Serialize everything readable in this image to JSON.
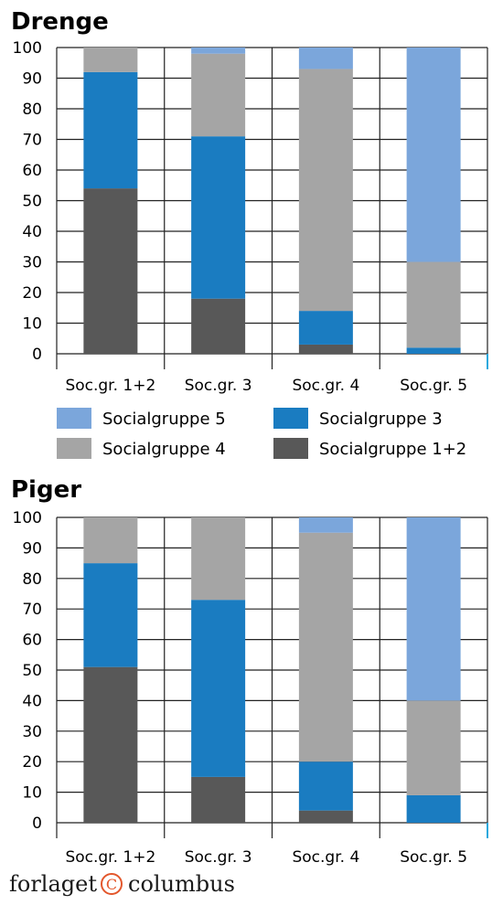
{
  "colors": {
    "Socialgruppe 1+2": "#585858",
    "Socialgruppe 3": "#1a7cc1",
    "Socialgruppe 4": "#a5a5a5",
    "Socialgruppe 5": "#7ba6db",
    "axis_accent": "#29a8dd"
  },
  "legend": {
    "items": [
      "Socialgruppe 5",
      "Socialgruppe 3",
      "Socialgruppe 4",
      "Socialgruppe 1+2"
    ]
  },
  "publisher": {
    "name_left": "forlaget",
    "mark": "C",
    "name_right": "columbus"
  },
  "chart_data": [
    {
      "type": "bar",
      "stacked": true,
      "title": "Drenge",
      "categories": [
        "Soc.gr. 1+2",
        "Soc.gr. 3",
        "Soc.gr. 4",
        "Soc.gr. 5"
      ],
      "ylim": [
        0,
        100
      ],
      "yticks": [
        0,
        10,
        20,
        30,
        40,
        50,
        60,
        70,
        80,
        90,
        100
      ],
      "grid": true,
      "series": [
        {
          "name": "Socialgruppe 1+2",
          "values": [
            54,
            18,
            3,
            0
          ]
        },
        {
          "name": "Socialgruppe 3",
          "values": [
            38,
            53,
            11,
            2
          ]
        },
        {
          "name": "Socialgruppe 4",
          "values": [
            8,
            27,
            79,
            28
          ]
        },
        {
          "name": "Socialgruppe 5",
          "values": [
            0,
            2,
            7,
            70
          ]
        }
      ]
    },
    {
      "type": "bar",
      "stacked": true,
      "title": "Piger",
      "categories": [
        "Soc.gr. 1+2",
        "Soc.gr. 3",
        "Soc.gr. 4",
        "Soc.gr. 5"
      ],
      "ylim": [
        0,
        100
      ],
      "yticks": [
        0,
        10,
        20,
        30,
        40,
        50,
        60,
        70,
        80,
        90,
        100
      ],
      "grid": true,
      "series": [
        {
          "name": "Socialgruppe 1+2",
          "values": [
            51,
            15,
            4,
            0
          ]
        },
        {
          "name": "Socialgruppe 3",
          "values": [
            34,
            58,
            16,
            9
          ]
        },
        {
          "name": "Socialgruppe 4",
          "values": [
            15,
            27,
            75,
            31
          ]
        },
        {
          "name": "Socialgruppe 5",
          "values": [
            0,
            0,
            5,
            60
          ]
        }
      ]
    }
  ]
}
